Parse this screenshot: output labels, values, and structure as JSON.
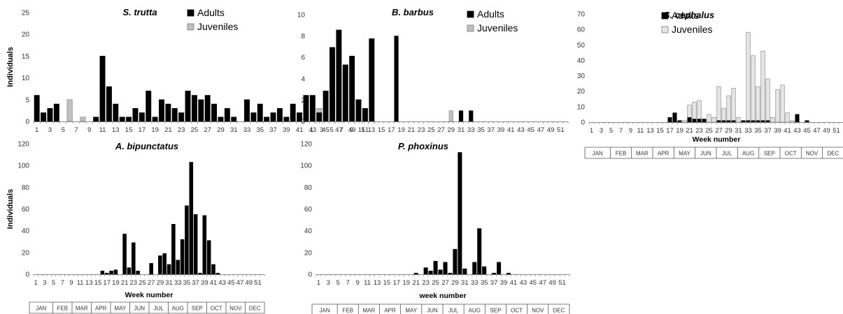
{
  "chart_data": [
    {
      "type": "bar",
      "title": "S. trutta",
      "xlabel": "",
      "ylabel": "Individuals",
      "ylim": [
        0,
        25
      ],
      "yticks": [
        "0",
        "5",
        "10",
        "15",
        "20",
        "25"
      ],
      "x": [
        1,
        2,
        3,
        4,
        5,
        6,
        7,
        8,
        9,
        10,
        11,
        12,
        13,
        14,
        15,
        16,
        17,
        18,
        19,
        20,
        21,
        22,
        23,
        24,
        25,
        26,
        27,
        28,
        29,
        30,
        31,
        32,
        33,
        34,
        35,
        36,
        37,
        38,
        39,
        40,
        41,
        42,
        43,
        44,
        45,
        46,
        47,
        48,
        49,
        50,
        51,
        52
      ],
      "xtick_labels": [
        "1",
        "3",
        "5",
        "7",
        "9",
        "11",
        "13",
        "15",
        "17",
        "19",
        "21",
        "23",
        "25",
        "27",
        "29",
        "31",
        "33",
        "35",
        "37",
        "39",
        "41",
        "43",
        "45",
        "47",
        "49",
        "51"
      ],
      "series": [
        {
          "name": "Adults",
          "color": "#000000",
          "values": [
            6,
            2,
            3,
            4,
            0,
            0,
            0,
            0,
            0,
            1,
            15,
            8,
            4,
            1,
            1,
            3,
            2,
            7,
            1,
            5,
            4,
            3,
            2,
            7,
            6,
            5,
            6,
            4,
            1,
            3,
            1,
            0,
            5,
            2,
            4,
            1,
            2,
            3,
            1,
            4,
            2,
            6,
            6,
            2,
            7,
            17,
            21,
            13,
            15,
            5,
            3,
            19
          ]
        },
        {
          "name": "Juveniles",
          "color": "#bfbfbf",
          "values": [
            0,
            0,
            0,
            0,
            0,
            5,
            0,
            1,
            0,
            0,
            0,
            0,
            0,
            0,
            0,
            0,
            0,
            0,
            0,
            0,
            0,
            0,
            0,
            0,
            0,
            0,
            0,
            0,
            0,
            0,
            0,
            0,
            0,
            0,
            0,
            0,
            0,
            0,
            0,
            0,
            0,
            0,
            0,
            3,
            0,
            0,
            0,
            0,
            0,
            0,
            0,
            0
          ]
        }
      ],
      "legend_position": "top-center",
      "months": []
    },
    {
      "type": "bar",
      "title": "B. barbus",
      "xlabel": "",
      "ylabel": "",
      "ylim": [
        0,
        10
      ],
      "yticks": [
        "0",
        "2",
        "4",
        "6",
        "8",
        "10"
      ],
      "x": [
        1,
        2,
        3,
        4,
        5,
        6,
        7,
        8,
        9,
        10,
        11,
        12,
        13,
        14,
        15,
        16,
        17,
        18,
        19,
        20,
        21,
        22,
        23,
        24,
        25,
        26,
        27,
        28,
        29,
        30,
        31,
        32,
        33,
        34,
        35,
        36,
        37,
        38,
        39,
        40,
        41,
        42,
        43,
        44,
        45,
        46,
        47,
        48,
        49,
        50,
        51,
        52
      ],
      "xtick_labels": [
        "1",
        "3",
        "5",
        "7",
        "9",
        "11",
        "13",
        "15",
        "17",
        "19",
        "21",
        "23",
        "25",
        "27",
        "29",
        "31",
        "33",
        "35",
        "37",
        "39",
        "41",
        "43",
        "45",
        "47",
        "49",
        "51"
      ],
      "series": [
        {
          "name": "Adults",
          "color": "#000000",
          "values": [
            0,
            0,
            0,
            0,
            0,
            0,
            0,
            0,
            0,
            0,
            0,
            0,
            0,
            0,
            0,
            0,
            0,
            8,
            0,
            0,
            0,
            0,
            0,
            0,
            0,
            0,
            0,
            0,
            0,
            0,
            1,
            0,
            1,
            0,
            0,
            0,
            0,
            0,
            0,
            0,
            0,
            0,
            0,
            0,
            0,
            0,
            0,
            0,
            0,
            0,
            0,
            0
          ]
        },
        {
          "name": "Juveniles",
          "color": "#bfbfbf",
          "values": [
            0,
            0,
            0,
            0,
            0,
            0,
            0,
            0,
            0,
            0,
            0,
            0,
            0,
            0,
            0,
            0,
            0,
            0,
            0,
            0,
            0,
            0,
            0,
            0,
            0,
            0,
            0,
            0,
            1,
            0,
            0,
            0,
            0,
            0,
            0,
            0,
            0,
            0,
            0,
            0,
            0,
            0,
            0,
            0,
            0,
            0,
            0,
            0,
            0,
            0,
            0,
            0
          ]
        }
      ],
      "legend_position": "top-right",
      "months": []
    },
    {
      "type": "bar",
      "title": "S. cephalus",
      "xlabel": "Week number",
      "ylabel": "",
      "ylim": [
        0,
        70
      ],
      "yticks": [
        "0",
        "10",
        "20",
        "30",
        "40",
        "50",
        "60",
        "70"
      ],
      "x": [
        1,
        2,
        3,
        4,
        5,
        6,
        7,
        8,
        9,
        10,
        11,
        12,
        13,
        14,
        15,
        16,
        17,
        18,
        19,
        20,
        21,
        22,
        23,
        24,
        25,
        26,
        27,
        28,
        29,
        30,
        31,
        32,
        33,
        34,
        35,
        36,
        37,
        38,
        39,
        40,
        41,
        42,
        43,
        44,
        45,
        46,
        47,
        48,
        49,
        50,
        51,
        52
      ],
      "xtick_labels": [
        "1",
        "3",
        "5",
        "7",
        "9",
        "11",
        "13",
        "15",
        "17",
        "19",
        "21",
        "23",
        "25",
        "27",
        "29",
        "31",
        "33",
        "35",
        "37",
        "39",
        "41",
        "43",
        "45",
        "47",
        "49",
        "51"
      ],
      "series": [
        {
          "name": "Adults",
          "color": "#000000",
          "values": [
            0,
            0,
            0,
            0,
            0,
            0,
            0,
            0,
            0,
            0,
            0,
            0,
            0,
            0,
            0,
            0,
            3,
            6,
            1,
            0,
            3,
            2,
            2,
            2,
            0,
            0,
            1,
            1,
            1,
            1,
            0,
            1,
            1,
            1,
            1,
            1,
            1,
            0,
            0,
            0,
            0,
            0,
            5,
            0,
            1,
            0,
            0,
            0,
            0,
            0,
            0,
            0
          ]
        },
        {
          "name": "Juveniles",
          "color": "#e6e6e6",
          "values": [
            0,
            0,
            0,
            0,
            0,
            0,
            0,
            0,
            0,
            0,
            0,
            0,
            0,
            0,
            0,
            0,
            0,
            0,
            1,
            1,
            11,
            13,
            14,
            1,
            5,
            3,
            23,
            9,
            17,
            22,
            3,
            1,
            58,
            43,
            23,
            46,
            28,
            3,
            21,
            24,
            6,
            1,
            0,
            0,
            0,
            0,
            0,
            0,
            0,
            0,
            0,
            0
          ]
        }
      ],
      "legend_position": "top-right",
      "months": [
        "JAN",
        "FEB",
        "MAR",
        "APR",
        "MAY",
        "JUN",
        "JUL",
        "AUG",
        "SEP",
        "OCT",
        "NOV",
        "DEC"
      ]
    },
    {
      "type": "bar",
      "title": "A. bipunctatus",
      "xlabel": "Week number",
      "ylabel": "Individuals",
      "ylim": [
        0,
        120
      ],
      "yticks": [
        "0",
        "20",
        "40",
        "60",
        "80",
        "100",
        "120"
      ],
      "x": [
        1,
        2,
        3,
        4,
        5,
        6,
        7,
        8,
        9,
        10,
        11,
        12,
        13,
        14,
        15,
        16,
        17,
        18,
        19,
        20,
        21,
        22,
        23,
        24,
        25,
        26,
        27,
        28,
        29,
        30,
        31,
        32,
        33,
        34,
        35,
        36,
        37,
        38,
        39,
        40,
        41,
        42,
        43,
        44,
        45,
        46,
        47,
        48,
        49,
        50,
        51,
        52
      ],
      "xtick_labels": [
        "1",
        "3",
        "5",
        "7",
        "9",
        "11",
        "13",
        "15",
        "17",
        "19",
        "21",
        "23",
        "25",
        "27",
        "29",
        "31",
        "33",
        "35",
        "37",
        "39",
        "41",
        "43",
        "45",
        "47",
        "49",
        "51"
      ],
      "series": [
        {
          "name": "Adults",
          "color": "#000000",
          "values": [
            0,
            0,
            0,
            0,
            0,
            0,
            0,
            0,
            0,
            0,
            0,
            0,
            0,
            0,
            0,
            3,
            1,
            3,
            4,
            0,
            37,
            6,
            29,
            3,
            0,
            0,
            10,
            0,
            17,
            19,
            9,
            46,
            13,
            32,
            63,
            103,
            55,
            1,
            54,
            31,
            9,
            1,
            0,
            0,
            0,
            0,
            0,
            0,
            0,
            0,
            0,
            0
          ]
        }
      ],
      "legend_position": "none",
      "months": [
        "JAN",
        "FEB",
        "MAR",
        "APR",
        "MAY",
        "JUN",
        "JUL",
        "AUG",
        "SEP",
        "OCT",
        "NOV",
        "DEC"
      ]
    },
    {
      "type": "bar",
      "title": "P. phoxinus",
      "xlabel": "week number",
      "ylabel": "",
      "ylim": [
        0,
        120
      ],
      "yticks": [
        "0",
        "20",
        "40",
        "60",
        "80",
        "100",
        "120"
      ],
      "x": [
        1,
        2,
        3,
        4,
        5,
        6,
        7,
        8,
        9,
        10,
        11,
        12,
        13,
        14,
        15,
        16,
        17,
        18,
        19,
        20,
        21,
        22,
        23,
        24,
        25,
        26,
        27,
        28,
        29,
        30,
        31,
        32,
        33,
        34,
        35,
        36,
        37,
        38,
        39,
        40,
        41,
        42,
        43,
        44,
        45,
        46,
        47,
        48,
        49,
        50,
        51,
        52
      ],
      "xtick_labels": [
        "1",
        "3",
        "5",
        "7",
        "9",
        "11",
        "13",
        "15",
        "17",
        "19",
        "21",
        "23",
        "25",
        "27",
        "29",
        "31",
        "33",
        "35",
        "37",
        "39",
        "41",
        "43",
        "45",
        "47",
        "49",
        "51"
      ],
      "series": [
        {
          "name": "Adults",
          "color": "#000000",
          "values": [
            0,
            0,
            0,
            0,
            0,
            0,
            0,
            0,
            0,
            0,
            0,
            0,
            0,
            0,
            0,
            0,
            0,
            0,
            0,
            0,
            1,
            0,
            6,
            3,
            12,
            4,
            11,
            1,
            23,
            112,
            5,
            0,
            11,
            42,
            7,
            0,
            1,
            11,
            0,
            1,
            0,
            0,
            0,
            0,
            0,
            0,
            0,
            0,
            0,
            0,
            0,
            0
          ]
        }
      ],
      "legend_position": "none",
      "months": [
        "JAN",
        "FEB",
        "MAR",
        "APR",
        "MAY",
        "JUN",
        "JUL",
        "AUG",
        "SEP",
        "OCT",
        "NOV",
        "DEC"
      ]
    }
  ]
}
